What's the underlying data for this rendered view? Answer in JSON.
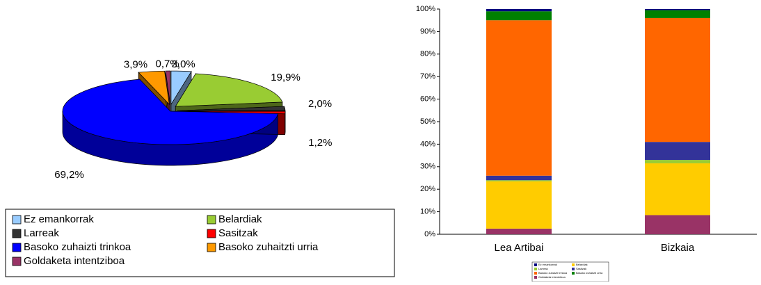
{
  "chart_data": [
    {
      "type": "pie",
      "categories": [
        "Ez emankorrak",
        "Belardiak",
        "Larreak",
        "Sasitzak",
        "Basoko zuhaizti trinkoa",
        "Basoko zuhaitzti urria",
        "Goldaketa intentziboa"
      ],
      "values": [
        3.0,
        19.9,
        2.0,
        1.2,
        69.2,
        3.9,
        0.7
      ],
      "value_labels": [
        "3,0%",
        "19,9%",
        "2,0%",
        "1,2%",
        "69,2%",
        "3,9%",
        "0,7%"
      ],
      "colors": [
        "#99ccff",
        "#99cc33",
        "#333333",
        "#ff0000",
        "#0000ff",
        "#ff9900",
        "#993366"
      ]
    },
    {
      "type": "bar",
      "stacked": true,
      "categories": [
        "Lea Artibai",
        "Bizkaia"
      ],
      "series": [
        {
          "name": "Goldaketa intentziboa",
          "color": "#993366",
          "values": [
            2.5,
            8.5
          ]
        },
        {
          "name": "Belardiak",
          "color": "#ffcc00",
          "values": [
            21,
            23
          ]
        },
        {
          "name": "Larreak",
          "color": "#99cc33",
          "values": [
            0.5,
            1.5
          ]
        },
        {
          "name": "Sasitzak",
          "color": "#333399",
          "values": [
            2,
            8
          ]
        },
        {
          "name": "Basoko zuhaizti trinkoa",
          "color": "#ff6600",
          "values": [
            69,
            55
          ]
        },
        {
          "name": "Basoko zuhaitzti urria",
          "color": "#008000",
          "values": [
            4,
            3.5
          ]
        },
        {
          "name": "Ez emankorrak",
          "color": "#000080",
          "values": [
            1,
            0.5
          ]
        }
      ],
      "ylim": [
        0,
        100
      ],
      "yticks": [
        {
          "value": 0,
          "label": "0%"
        },
        {
          "value": 10,
          "label": "10%"
        },
        {
          "value": 20,
          "label": "20%"
        },
        {
          "value": 30,
          "label": "30%"
        },
        {
          "value": 40,
          "label": "40%"
        },
        {
          "value": 50,
          "label": "50%"
        },
        {
          "value": 60,
          "label": "60%"
        },
        {
          "value": 70,
          "label": "70%"
        },
        {
          "value": 80,
          "label": "80%"
        },
        {
          "value": 90,
          "label": "90%"
        },
        {
          "value": 100,
          "label": "100%"
        }
      ]
    }
  ]
}
